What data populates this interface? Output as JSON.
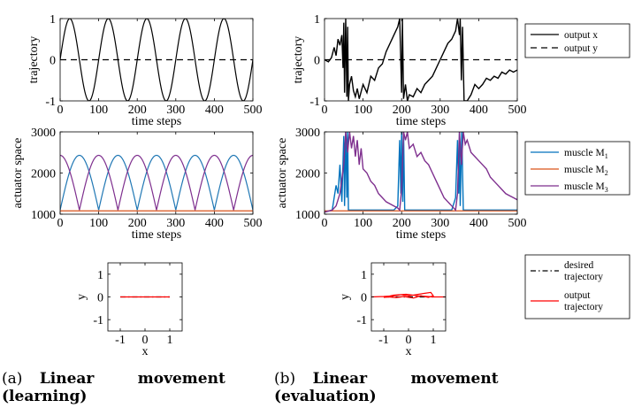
{
  "figure": {
    "captions": [
      {
        "tag": "(a)",
        "w1": "Linear",
        "w2": "movement",
        "w3": "(learning)"
      },
      {
        "tag": "(b)",
        "w1": "Linear",
        "w2": "movement",
        "w3": "(evaluation)"
      }
    ]
  },
  "chart_data": [
    {
      "id": "a-trajectory",
      "type": "line",
      "xlabel": "time steps",
      "ylabel": "trajectory",
      "xlim": [
        0,
        500
      ],
      "ylim": [
        -1,
        1
      ],
      "xticks": [
        "0",
        "100",
        "200",
        "300",
        "400",
        "500"
      ],
      "yticks": [
        "-1",
        "0",
        "1"
      ],
      "series": [
        {
          "name": "output x",
          "color": "#000000",
          "style": "solid",
          "function": "sin",
          "period": 100,
          "amplitude": 1
        },
        {
          "name": "output y",
          "color": "#000000",
          "style": "dashed",
          "values_constant": 0
        }
      ]
    },
    {
      "id": "b-trajectory",
      "type": "line",
      "xlabel": "time steps",
      "ylabel": "trajectory",
      "xlim": [
        0,
        500
      ],
      "ylim": [
        -1,
        1
      ],
      "xticks": [
        "0",
        "100",
        "200",
        "300",
        "400",
        "500"
      ],
      "yticks": [
        "-1",
        "0",
        "1"
      ],
      "series": [
        {
          "name": "output x",
          "color": "#000000",
          "style": "solid",
          "points": [
            [
              0,
              0
            ],
            [
              10,
              -0.05
            ],
            [
              18,
              0.05
            ],
            [
              25,
              0.3
            ],
            [
              30,
              0.1
            ],
            [
              35,
              0.5
            ],
            [
              40,
              0.35
            ],
            [
              45,
              0.6
            ],
            [
              48,
              -0.2
            ],
            [
              50,
              0.9
            ],
            [
              52,
              -0.8
            ],
            [
              55,
              1
            ],
            [
              58,
              -0.9
            ],
            [
              60,
              0.8
            ],
            [
              62,
              -1
            ],
            [
              65,
              -0.6
            ],
            [
              70,
              -0.4
            ],
            [
              75,
              -0.75
            ],
            [
              80,
              -0.9
            ],
            [
              85,
              -0.7
            ],
            [
              90,
              -0.95
            ],
            [
              100,
              -0.6
            ],
            [
              110,
              -0.8
            ],
            [
              120,
              -0.4
            ],
            [
              130,
              -0.5
            ],
            [
              140,
              -0.2
            ],
            [
              150,
              -0.1
            ],
            [
              160,
              0.2
            ],
            [
              170,
              0.4
            ],
            [
              180,
              0.6
            ],
            [
              190,
              0.8
            ],
            [
              195,
              1
            ],
            [
              200,
              -0.8
            ],
            [
              202,
              1
            ],
            [
              205,
              -0.95
            ],
            [
              210,
              -0.6
            ],
            [
              215,
              -1
            ],
            [
              220,
              -0.85
            ],
            [
              230,
              -0.9
            ],
            [
              240,
              -0.7
            ],
            [
              250,
              -0.8
            ],
            [
              260,
              -0.6
            ],
            [
              270,
              -0.5
            ],
            [
              280,
              -0.4
            ],
            [
              290,
              -0.2
            ],
            [
              300,
              0
            ],
            [
              310,
              0.2
            ],
            [
              320,
              0.4
            ],
            [
              330,
              0.5
            ],
            [
              340,
              0.7
            ],
            [
              345,
              1
            ],
            [
              350,
              0.6
            ],
            [
              352,
              1
            ],
            [
              355,
              -0.5
            ],
            [
              358,
              0.8
            ],
            [
              362,
              -1
            ],
            [
              370,
              -1
            ],
            [
              380,
              -0.85
            ],
            [
              390,
              -0.6
            ],
            [
              400,
              -0.7
            ],
            [
              410,
              -0.6
            ],
            [
              420,
              -0.45
            ],
            [
              430,
              -0.5
            ],
            [
              440,
              -0.4
            ],
            [
              450,
              -0.45
            ],
            [
              460,
              -0.3
            ],
            [
              470,
              -0.35
            ],
            [
              480,
              -0.25
            ],
            [
              490,
              -0.3
            ],
            [
              500,
              -0.25
            ]
          ]
        },
        {
          "name": "output y",
          "color": "#000000",
          "style": "dashed",
          "values_constant": 0
        }
      ]
    },
    {
      "id": "a-actuator",
      "type": "line",
      "xlabel": "time steps",
      "ylabel": "actuator space",
      "xlim": [
        0,
        500
      ],
      "ylim": [
        1000,
        3000
      ],
      "xticks": [
        "0",
        "100",
        "200",
        "300",
        "400",
        "500"
      ],
      "yticks": [
        "1000",
        "2000",
        "3000"
      ],
      "series": [
        {
          "name": "muscle M1",
          "color": "#1f77b4",
          "style": "solid",
          "function": "abs-sin",
          "base": 1100,
          "peak": 2430,
          "period": 100,
          "phase": 0
        },
        {
          "name": "muscle M2",
          "color": "#d95319",
          "style": "solid",
          "values_constant": 1080
        },
        {
          "name": "muscle M3",
          "color": "#7e2f8e",
          "style": "solid",
          "function": "abs-sin",
          "base": 1100,
          "peak": 2430,
          "period": 100,
          "phase": 50
        }
      ]
    },
    {
      "id": "b-actuator",
      "type": "line",
      "xlabel": "time steps",
      "ylabel": "actuator space",
      "xlim": [
        0,
        500
      ],
      "ylim": [
        1000,
        3000
      ],
      "xticks": [
        "0",
        "100",
        "200",
        "300",
        "400",
        "500"
      ],
      "yticks": [
        "1000",
        "2000",
        "3000"
      ],
      "series": [
        {
          "name": "muscle M1",
          "color": "#0072bd",
          "style": "solid",
          "points": [
            [
              0,
              1050
            ],
            [
              20,
              1100
            ],
            [
              30,
              1700
            ],
            [
              35,
              1500
            ],
            [
              40,
              2200
            ],
            [
              45,
              1300
            ],
            [
              50,
              2900
            ],
            [
              52,
              1200
            ],
            [
              55,
              3000
            ],
            [
              58,
              1400
            ],
            [
              60,
              3000
            ],
            [
              62,
              1100
            ],
            [
              70,
              1100
            ],
            [
              100,
              1100
            ],
            [
              150,
              1100
            ],
            [
              180,
              1100
            ],
            [
              190,
              1200
            ],
            [
              195,
              2800
            ],
            [
              198,
              1500
            ],
            [
              200,
              3000
            ],
            [
              203,
              1300
            ],
            [
              205,
              3000
            ],
            [
              208,
              1100
            ],
            [
              220,
              1100
            ],
            [
              300,
              1100
            ],
            [
              330,
              1100
            ],
            [
              340,
              1400
            ],
            [
              345,
              2800
            ],
            [
              348,
              1500
            ],
            [
              350,
              3000
            ],
            [
              352,
              1200
            ],
            [
              356,
              3000
            ],
            [
              360,
              1100
            ],
            [
              400,
              1100
            ],
            [
              500,
              1100
            ]
          ]
        },
        {
          "name": "muscle M2",
          "color": "#d95319",
          "style": "solid",
          "values_constant": 1080
        },
        {
          "name": "muscle M3",
          "color": "#7e2f8e",
          "style": "solid",
          "points": [
            [
              0,
              1050
            ],
            [
              20,
              1100
            ],
            [
              30,
              1200
            ],
            [
              40,
              1500
            ],
            [
              50,
              2200
            ],
            [
              55,
              3000
            ],
            [
              60,
              2500
            ],
            [
              65,
              3000
            ],
            [
              70,
              2600
            ],
            [
              75,
              2900
            ],
            [
              80,
              2400
            ],
            [
              85,
              2800
            ],
            [
              90,
              2200
            ],
            [
              95,
              2600
            ],
            [
              100,
              2100
            ],
            [
              110,
              2000
            ],
            [
              120,
              1800
            ],
            [
              130,
              1700
            ],
            [
              140,
              1500
            ],
            [
              150,
              1400
            ],
            [
              160,
              1300
            ],
            [
              170,
              1250
            ],
            [
              180,
              1200
            ],
            [
              190,
              1150
            ],
            [
              195,
              1100
            ],
            [
              200,
              1600
            ],
            [
              205,
              3000
            ],
            [
              210,
              2800
            ],
            [
              215,
              3000
            ],
            [
              220,
              2600
            ],
            [
              230,
              2700
            ],
            [
              240,
              2400
            ],
            [
              250,
              2500
            ],
            [
              260,
              2300
            ],
            [
              270,
              2200
            ],
            [
              280,
              2000
            ],
            [
              290,
              1800
            ],
            [
              300,
              1600
            ],
            [
              310,
              1400
            ],
            [
              320,
              1300
            ],
            [
              330,
              1200
            ],
            [
              340,
              1100
            ],
            [
              345,
              1500
            ],
            [
              350,
              3000
            ],
            [
              355,
              2200
            ],
            [
              360,
              3000
            ],
            [
              365,
              2700
            ],
            [
              370,
              2800
            ],
            [
              380,
              2500
            ],
            [
              390,
              2400
            ],
            [
              400,
              2300
            ],
            [
              410,
              2200
            ],
            [
              420,
              2100
            ],
            [
              430,
              1900
            ],
            [
              440,
              1800
            ],
            [
              450,
              1700
            ],
            [
              460,
              1600
            ],
            [
              470,
              1500
            ],
            [
              480,
              1450
            ],
            [
              490,
              1400
            ],
            [
              500,
              1350
            ]
          ]
        }
      ]
    },
    {
      "id": "a-xy",
      "type": "line",
      "xlabel": "x",
      "ylabel": "y",
      "xlim": [
        -1.5,
        1.5
      ],
      "ylim": [
        -1.5,
        1.5
      ],
      "xticks": [
        "-1",
        "0",
        "1"
      ],
      "yticks": [
        "-1",
        "0",
        "1"
      ],
      "series": [
        {
          "name": "desired trajectory",
          "color": "#000000",
          "style": "dashdot",
          "points": [
            [
              -1,
              0
            ],
            [
              1,
              0
            ]
          ]
        },
        {
          "name": "output trajectory",
          "color": "#ff0000",
          "style": "solid",
          "points": [
            [
              -1,
              0
            ],
            [
              1,
              0
            ]
          ]
        }
      ]
    },
    {
      "id": "b-xy",
      "type": "line",
      "xlabel": "x",
      "ylabel": "y",
      "xlim": [
        -1.5,
        1.5
      ],
      "ylim": [
        -1.5,
        1.5
      ],
      "xticks": [
        "-1",
        "0",
        "1"
      ],
      "yticks": [
        "-1",
        "0",
        "1"
      ],
      "series": [
        {
          "name": "desired trajectory",
          "color": "#000000",
          "style": "dashdot",
          "points": [
            [
              -1,
              0
            ],
            [
              1,
              0
            ]
          ]
        },
        {
          "name": "output trajectory",
          "color": "#ff0000",
          "style": "solid",
          "points": [
            [
              -1.5,
              0
            ],
            [
              -1,
              0.02
            ],
            [
              -0.6,
              0.05
            ],
            [
              -0.3,
              0.1
            ],
            [
              0,
              0.05
            ],
            [
              0.3,
              0.1
            ],
            [
              0.6,
              0.15
            ],
            [
              0.9,
              0.2
            ],
            [
              1,
              0.05
            ],
            [
              0.8,
              -0.02
            ],
            [
              0.5,
              0.05
            ],
            [
              0.2,
              -0.05
            ],
            [
              -0.2,
              0.02
            ],
            [
              -0.5,
              -0.03
            ],
            [
              -0.8,
              0
            ],
            [
              -1,
              -0.02
            ],
            [
              -0.6,
              0.08
            ],
            [
              -0.1,
              0.12
            ],
            [
              0.4,
              0.05
            ],
            [
              1,
              0
            ],
            [
              1.5,
              0
            ]
          ]
        }
      ]
    }
  ],
  "legends": [
    {
      "id": "legend-trajectory",
      "items": [
        {
          "label": "output x",
          "color": "#000000",
          "style": "solid"
        },
        {
          "label": "output y",
          "color": "#000000",
          "style": "dashed"
        }
      ]
    },
    {
      "id": "legend-muscles",
      "items": [
        {
          "label": "muscle M",
          "sub": "1",
          "color": "#0072bd",
          "style": "solid"
        },
        {
          "label": "muscle M",
          "sub": "2",
          "color": "#d95319",
          "style": "solid"
        },
        {
          "label": "muscle M",
          "sub": "3",
          "color": "#7e2f8e",
          "style": "solid"
        }
      ]
    },
    {
      "id": "legend-xy",
      "items": [
        {
          "label": "desired",
          "label2": "trajectory",
          "color": "#000000",
          "style": "dashdot"
        },
        {
          "label": "output",
          "label2": "trajectory",
          "color": "#ff0000",
          "style": "solid"
        }
      ]
    }
  ]
}
